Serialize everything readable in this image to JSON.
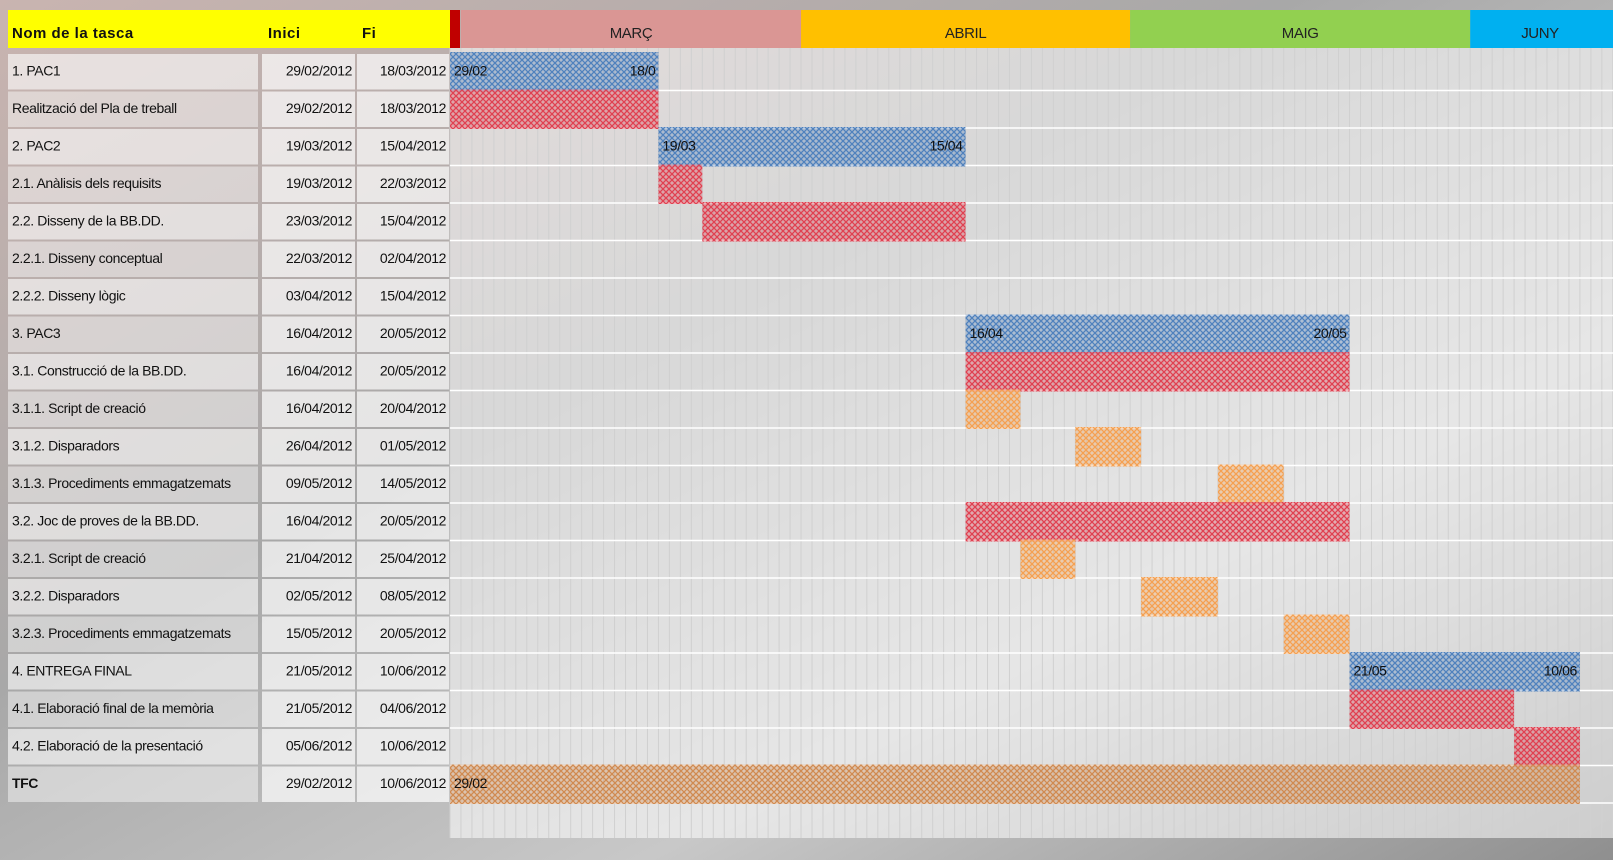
{
  "chart_data": {
    "type": "gantt",
    "columns": [
      "Nom de la tasca",
      "Inici",
      "Fi"
    ],
    "months": [
      {
        "name": "MARÇ",
        "color": "#da9694"
      },
      {
        "name": "ABRIL",
        "color": "#ffc000"
      },
      {
        "name": "MAIG",
        "color": "#92d050"
      },
      {
        "name": "JUNY",
        "color": "#00b0f0"
      }
    ],
    "tasks": [
      {
        "name": "1. PAC1",
        "start": "29/02/2012",
        "end": "18/03/2012",
        "color": "#4f81bd",
        "start_label": "29/02",
        "end_label": "18/0"
      },
      {
        "name": "Realització del Pla de treball",
        "start": "29/02/2012",
        "end": "18/03/2012",
        "color": "#e04050"
      },
      {
        "name": "2. PAC2",
        "start": "19/03/2012",
        "end": "15/04/2012",
        "color": "#4f81bd",
        "start_label": "19/03",
        "end_label": "15/04"
      },
      {
        "name": "2.1. Anàlisis dels requisits",
        "start": "19/03/2012",
        "end": "22/03/2012",
        "color": "#e04050"
      },
      {
        "name": "2.2. Disseny de la BB.DD.",
        "start": "23/03/2012",
        "end": "15/04/2012",
        "color": "#e04050"
      },
      {
        "name": "2.2.1. Disseny conceptual",
        "start": "22/03/2012",
        "end": "02/04/2012"
      },
      {
        "name": "2.2.2. Disseny lògic",
        "start": "03/04/2012",
        "end": "15/04/2012"
      },
      {
        "name": "3. PAC3",
        "start": "16/04/2012",
        "end": "20/05/2012",
        "color": "#4f81bd",
        "start_label": "16/04",
        "end_label": "20/05"
      },
      {
        "name": "3.1. Construcció de la BB.DD.",
        "start": "16/04/2012",
        "end": "20/05/2012",
        "color": "#e04050"
      },
      {
        "name": "3.1.1. Script de creació",
        "start": "16/04/2012",
        "end": "20/04/2012",
        "color": "#f5a050"
      },
      {
        "name": "3.1.2. Disparadors",
        "start": "26/04/2012",
        "end": "01/05/2012",
        "color": "#f5a050"
      },
      {
        "name": "3.1.3. Procediments emmagatzemats",
        "start": "09/05/2012",
        "end": "14/05/2012",
        "color": "#f5a050"
      },
      {
        "name": "3.2. Joc de proves de la BB.DD.",
        "start": "16/04/2012",
        "end": "20/05/2012",
        "color": "#e04050"
      },
      {
        "name": "3.2.1. Script de creació",
        "start": "21/04/2012",
        "end": "25/04/2012",
        "color": "#f5a050"
      },
      {
        "name": "3.2.2. Disparadors",
        "start": "02/05/2012",
        "end": "08/05/2012",
        "color": "#f5a050"
      },
      {
        "name": "3.2.3. Procediments emmagatzemats",
        "start": "15/05/2012",
        "end": "20/05/2012",
        "color": "#f5a050"
      },
      {
        "name": "4. ENTREGA FINAL",
        "start": "21/05/2012",
        "end": "10/06/2012",
        "color": "#4f81bd",
        "start_label": "21/05",
        "end_label": "10/06"
      },
      {
        "name": "4.1. Elaboració final de la memòria",
        "start": "21/05/2012",
        "end": "04/06/2012",
        "color": "#e04050"
      },
      {
        "name": "4.2. Elaboració de la presentació",
        "start": "05/06/2012",
        "end": "10/06/2012",
        "color": "#e04050"
      },
      {
        "name": "TFC",
        "start": "29/02/2012",
        "end": "10/06/2012",
        "color": "#d08a50",
        "start_label": "29/02",
        "bold": true
      }
    ]
  }
}
